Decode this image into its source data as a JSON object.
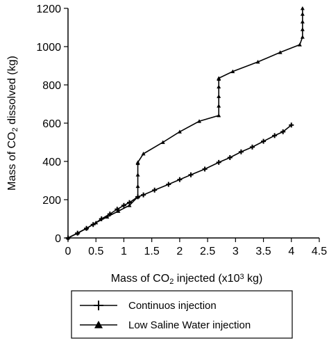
{
  "chart_data": {
    "type": "line",
    "xlabel_parts": [
      "Mass of CO",
      "2",
      " injected (x10",
      "3",
      " kg)"
    ],
    "ylabel_parts": [
      "Mass of CO",
      "2",
      " dissolved (kg)"
    ],
    "xlim": [
      0,
      4.5
    ],
    "ylim": [
      0,
      1200
    ],
    "x_ticks": [
      0,
      0.5,
      1,
      1.5,
      2,
      2.5,
      3,
      3.5,
      4,
      4.5
    ],
    "x_tick_labels": [
      "0",
      "0.5",
      "1",
      "1.5",
      "2",
      "2.5",
      "3",
      "3.5",
      "4",
      "4.5"
    ],
    "y_ticks": [
      0,
      200,
      400,
      600,
      800,
      1000,
      1200
    ],
    "y_tick_labels": [
      "0",
      "200",
      "400",
      "600",
      "800",
      "1000",
      "1200"
    ],
    "legend_position": "bottom",
    "series": [
      {
        "name": "Continuos injection",
        "marker": "plus",
        "color": "#000000",
        "x": [
          0,
          0.17,
          0.33,
          0.45,
          0.6,
          0.75,
          0.88,
          1.0,
          1.1,
          1.25,
          1.35,
          1.55,
          1.8,
          2.0,
          2.2,
          2.45,
          2.7,
          2.9,
          3.1,
          3.3,
          3.5,
          3.7,
          3.85,
          4.0
        ],
        "y": [
          0,
          25,
          50,
          70,
          100,
          125,
          150,
          170,
          185,
          215,
          225,
          250,
          280,
          305,
          330,
          360,
          395,
          420,
          450,
          475,
          505,
          535,
          555,
          590
        ]
      },
      {
        "name": "Low Saline Water injection",
        "marker": "triangle",
        "color": "#000000",
        "x": [
          0,
          0.17,
          0.33,
          0.5,
          0.7,
          0.9,
          1.1,
          1.25,
          1.25,
          1.25,
          1.25,
          1.25,
          1.35,
          1.7,
          2.0,
          2.35,
          2.7,
          2.7,
          2.7,
          2.7,
          2.7,
          2.7,
          2.95,
          3.4,
          3.8,
          4.15,
          4.2,
          4.2,
          4.2,
          4.2,
          4.2
        ],
        "y": [
          0,
          25,
          50,
          80,
          110,
          140,
          170,
          215,
          270,
          330,
          390,
          395,
          440,
          500,
          555,
          610,
          640,
          690,
          740,
          790,
          830,
          835,
          870,
          920,
          970,
          1010,
          1050,
          1090,
          1130,
          1170,
          1200
        ]
      }
    ]
  }
}
